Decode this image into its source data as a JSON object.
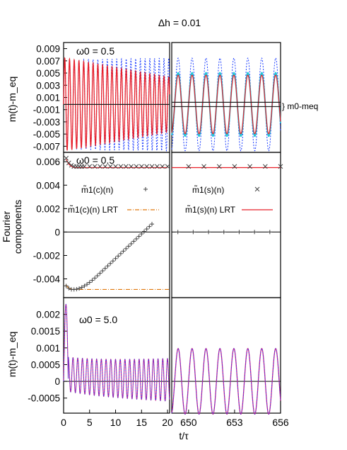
{
  "figure": {
    "title": "Δh = 0.01",
    "xlabel": "t/τ",
    "colors": {
      "axis": "#000000",
      "red": "#e8202a",
      "blue": "#1a3cff",
      "cyan": "#22c6d8",
      "magenta": "#c2238c",
      "orange": "#e07a10",
      "dark_line": "#1b1b1b",
      "gray_marker": "#444444"
    }
  },
  "chart_data": [
    {
      "type": "line",
      "panel": "top",
      "ylabel": "m(t)-m_eq",
      "annotation": "ω0 = 0.5",
      "right_annotation": "} m0-meq",
      "ylim": [
        -0.008,
        0.01
      ],
      "yticks": [
        "-0.007",
        "-0.005",
        "-0.003",
        "-0.001",
        "0.001",
        "0.003",
        "0.005",
        "0.007",
        "0.009"
      ],
      "left_xlim": [
        0,
        20.4
      ],
      "right_xlim": [
        648.9,
        656
      ],
      "offset_level": -0.00015,
      "series": [
        {
          "description": "oscillation, left",
          "color": "red",
          "envelope_start": 0.0082,
          "envelope_end": 0.0048,
          "frequency_per_tau": 1.1
        },
        {
          "description": "dotted reference",
          "color": "blue",
          "amplitude": 0.0076,
          "frequency_per_tau": 1.1
        },
        {
          "description": "right window oscillation",
          "color": "cyan",
          "amplitude": 0.0052,
          "frequency_per_tau": 1.1
        }
      ]
    },
    {
      "type": "scatter",
      "panel": "middle",
      "ylabel": "Fourier components",
      "annotation": "ω0 = 0.5",
      "ylim": [
        -0.0056,
        0.0068
      ],
      "yticks": [
        "0.006",
        "0.004",
        "0.002",
        "0",
        "-0.002",
        "-0.004"
      ],
      "legend": [
        {
          "label": "m̃1(c)(n)",
          "marker": "plus"
        },
        {
          "label": "m̃1(c)(n) LRT",
          "marker": "dashdot-orange"
        },
        {
          "label": "m̃1(s)(n)",
          "marker": "cross"
        },
        {
          "label": "m̃1(s)(n) LRT",
          "marker": "solid-red"
        }
      ],
      "m1c_points_x": [
        0.5,
        1,
        1.5,
        2,
        2.5,
        3,
        3.5,
        4,
        4.5,
        5,
        5.5,
        6,
        6.5,
        7,
        7.5,
        8,
        8.5,
        9,
        9.5,
        10,
        10.5,
        11,
        11.5,
        12,
        12.5,
        13,
        13.5,
        14,
        14.5,
        15,
        15.5,
        16,
        16.5,
        17,
        17.5,
        18,
        18.5,
        19,
        19.5,
        20
      ],
      "m1c_points_y": [
        -0.0046,
        -0.0048,
        -0.0049,
        -0.0049,
        -0.00488,
        -0.00482,
        -0.00472,
        -0.0046,
        -0.00446,
        -0.0043,
        -0.00412,
        -0.00393,
        -0.00373,
        -0.00352,
        -0.00331,
        -0.0031,
        -0.00289,
        -0.00268,
        -0.00247,
        -0.00226,
        -0.00205,
        -0.00184,
        -0.00163,
        -0.00142,
        -0.00121,
        -0.001,
        -0.00079,
        -0.00058,
        -0.00037,
        -0.00016,
        5e-05,
        0.00026,
        0.00047,
        0.00068,
        0.00089,
        0.0001,
        0.0001,
        0.0001,
        0.0001,
        0.0001
      ],
      "m1c_lrt_level": -0.0049,
      "m1s_left_x": [
        0.5,
        1,
        1.5,
        2,
        2.5,
        3,
        3.5,
        4,
        5,
        6,
        7,
        8,
        9,
        10,
        11,
        12,
        13,
        14,
        15,
        16,
        17,
        18,
        19,
        20
      ],
      "m1s_left_y": [
        0.0063,
        0.0059,
        0.0057,
        0.0056,
        0.0056,
        0.0056,
        0.0056,
        0.0056,
        0.0056,
        0.0056,
        0.0056,
        0.0056,
        0.0056,
        0.0056,
        0.0056,
        0.0056,
        0.0056,
        0.0056,
        0.0056,
        0.0056,
        0.0056,
        0.0056,
        0.0056,
        0.0056
      ],
      "m1s_lrt_level": 0.0055,
      "right_cross_x": [
        650,
        651,
        652,
        653,
        654,
        655,
        656
      ],
      "right_cross_y": 0.0056,
      "right_plus_x": [
        649.3,
        650.3,
        651.3,
        652.3,
        653.3,
        654.3,
        655.3
      ],
      "right_plus_y": 0.0
    },
    {
      "type": "line",
      "panel": "bottom",
      "ylabel": "m(t)-m_eq",
      "annotation": "ω0 = 5.0",
      "ylim": [
        -0.00095,
        0.0025
      ],
      "yticks": [
        "0.002",
        "0.0015",
        "0.001",
        "0.0005",
        "0",
        "-0.0005"
      ],
      "left_xlim": [
        0,
        20.4
      ],
      "right_xlim": [
        648.9,
        656
      ],
      "xticks_left": [
        "0",
        "5",
        "10",
        "15",
        "20"
      ],
      "xticks_right": [
        "650",
        "653",
        "656"
      ],
      "series": [
        {
          "description": "response",
          "color": "magenta",
          "peak": 0.0023,
          "steady_amplitude": 0.00098,
          "offset_left_max": 0.0002,
          "frequency_per_tau": 1.1
        }
      ]
    }
  ]
}
